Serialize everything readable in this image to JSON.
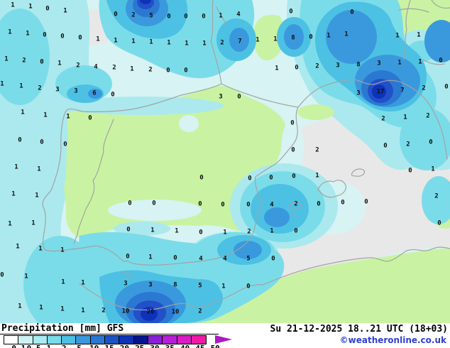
{
  "legend": {
    "title": "Precipitation [mm] GFS",
    "parameter": "Precipitation",
    "units": "[mm]",
    "model": "GFS",
    "arrow_color": "#a81cc0",
    "levels": [
      {
        "label": "0.1",
        "color": "#ffffff"
      },
      {
        "label": "0.5",
        "color": "#cdf2f3"
      },
      {
        "label": "1",
        "color": "#a6ecf1"
      },
      {
        "label": "2",
        "color": "#78dcea"
      },
      {
        "label": "5",
        "color": "#4cc1e4"
      },
      {
        "label": "10",
        "color": "#3a99dd"
      },
      {
        "label": "15",
        "color": "#2b78d2"
      },
      {
        "label": "20",
        "color": "#1c54c6"
      },
      {
        "label": "25",
        "color": "#0d33b6"
      },
      {
        "label": "30",
        "color": "#03158c"
      },
      {
        "label": "35",
        "color": "#8820d6"
      },
      {
        "label": "40",
        "color": "#b81fd8"
      },
      {
        "label": "45",
        "color": "#d91dc2"
      },
      {
        "label": "50",
        "color": "#ef1ba6"
      }
    ]
  },
  "timestamp": {
    "text": "Su 21-12-2025 18..21 UTC (18+03)"
  },
  "credit": {
    "text": "©weatheronline.co.uk",
    "color": "#2f3fd0"
  },
  "map": {
    "region": "Iberian Peninsula / Western Mediterranean",
    "palette": {
      "p05": "#d7f3f4",
      "p1": "#abe9ee",
      "p2": "#7bdce9",
      "p5": "#4cc1e4",
      "p10": "#3a99dd",
      "p15": "#2b78d2",
      "p20": "#2150c8",
      "p25": "#0f33b8",
      "dry": "#e9e8e8",
      "dry2": "#f0f8f8",
      "dry3": "#eee6e6",
      "land": "#c9f3a2",
      "coast": "#a3a3a3"
    },
    "values": [
      [
        18,
        6,
        "1"
      ],
      [
        43,
        8,
        "1"
      ],
      [
        67,
        11,
        "0"
      ],
      [
        92,
        14,
        "1"
      ],
      [
        163,
        19,
        "0"
      ],
      [
        188,
        20,
        "2"
      ],
      [
        213,
        21,
        "5"
      ],
      [
        238,
        22,
        "0"
      ],
      [
        262,
        22,
        "0"
      ],
      [
        287,
        22,
        "0"
      ],
      [
        311,
        21,
        "1"
      ],
      [
        336,
        19,
        "4"
      ],
      [
        410,
        15,
        "0"
      ],
      [
        496,
        16,
        "0"
      ],
      [
        14,
        44,
        "1"
      ],
      [
        39,
        46,
        "1"
      ],
      [
        63,
        48,
        "0"
      ],
      [
        88,
        50,
        "0"
      ],
      [
        113,
        52,
        "0"
      ],
      [
        138,
        54,
        "1"
      ],
      [
        163,
        56,
        "1"
      ],
      [
        188,
        57,
        "1"
      ],
      [
        213,
        58,
        "1"
      ],
      [
        238,
        59,
        "1"
      ],
      [
        263,
        60,
        "1"
      ],
      [
        288,
        60,
        "1"
      ],
      [
        313,
        59,
        "2"
      ],
      [
        338,
        57,
        "7"
      ],
      [
        363,
        55,
        "1"
      ],
      [
        388,
        54,
        "1"
      ],
      [
        413,
        52,
        "8"
      ],
      [
        438,
        51,
        "0"
      ],
      [
        463,
        49,
        "1"
      ],
      [
        488,
        47,
        "1"
      ],
      [
        560,
        49,
        "1"
      ],
      [
        590,
        48,
        "1"
      ],
      [
        9,
        82,
        "1"
      ],
      [
        34,
        84,
        "2"
      ],
      [
        59,
        86,
        "0"
      ],
      [
        84,
        88,
        "1"
      ],
      [
        110,
        91,
        "2"
      ],
      [
        135,
        93,
        "4"
      ],
      [
        161,
        94,
        "2"
      ],
      [
        186,
        96,
        "1"
      ],
      [
        212,
        97,
        "2"
      ],
      [
        237,
        98,
        "0"
      ],
      [
        262,
        98,
        "0"
      ],
      [
        390,
        95,
        "1"
      ],
      [
        418,
        94,
        "0"
      ],
      [
        447,
        92,
        "2"
      ],
      [
        476,
        91,
        "3"
      ],
      [
        505,
        90,
        "8"
      ],
      [
        534,
        88,
        "3"
      ],
      [
        563,
        87,
        "1"
      ],
      [
        592,
        86,
        "1"
      ],
      [
        621,
        84,
        "0"
      ],
      [
        3,
        117,
        "1"
      ],
      [
        30,
        120,
        "1"
      ],
      [
        56,
        123,
        "2"
      ],
      [
        81,
        125,
        "3"
      ],
      [
        107,
        127,
        "3"
      ],
      [
        133,
        130,
        "6"
      ],
      [
        159,
        132,
        "0"
      ],
      [
        311,
        135,
        "3"
      ],
      [
        337,
        135,
        "0"
      ],
      [
        505,
        130,
        "3"
      ],
      [
        536,
        128,
        "17"
      ],
      [
        567,
        126,
        "7"
      ],
      [
        597,
        123,
        "2"
      ],
      [
        629,
        121,
        "0"
      ],
      [
        32,
        157,
        "1"
      ],
      [
        64,
        161,
        "1"
      ],
      [
        96,
        163,
        "1"
      ],
      [
        127,
        165,
        "0"
      ],
      [
        412,
        172,
        "0"
      ],
      [
        540,
        166,
        "2"
      ],
      [
        571,
        164,
        "1"
      ],
      [
        603,
        162,
        "2"
      ],
      [
        28,
        196,
        "0"
      ],
      [
        59,
        199,
        "0"
      ],
      [
        92,
        202,
        "0"
      ],
      [
        413,
        210,
        "0"
      ],
      [
        447,
        210,
        "2"
      ],
      [
        543,
        204,
        "0"
      ],
      [
        575,
        202,
        "2"
      ],
      [
        607,
        199,
        "0"
      ],
      [
        23,
        234,
        "1"
      ],
      [
        55,
        237,
        "1"
      ],
      [
        284,
        249,
        "0"
      ],
      [
        352,
        250,
        "0"
      ],
      [
        382,
        249,
        "0"
      ],
      [
        414,
        247,
        "0"
      ],
      [
        447,
        246,
        "1"
      ],
      [
        578,
        239,
        "0"
      ],
      [
        610,
        237,
        "1"
      ],
      [
        19,
        272,
        "1"
      ],
      [
        52,
        274,
        "1"
      ],
      [
        183,
        285,
        "0"
      ],
      [
        217,
        285,
        "0"
      ],
      [
        282,
        286,
        "0"
      ],
      [
        314,
        287,
        "0"
      ],
      [
        350,
        287,
        "0"
      ],
      [
        383,
        287,
        "4"
      ],
      [
        417,
        286,
        "2"
      ],
      [
        449,
        286,
        "0"
      ],
      [
        483,
        284,
        "0"
      ],
      [
        516,
        283,
        "0"
      ],
      [
        615,
        275,
        "2"
      ],
      [
        14,
        314,
        "1"
      ],
      [
        47,
        313,
        "1"
      ],
      [
        181,
        322,
        "0"
      ],
      [
        215,
        323,
        "1"
      ],
      [
        249,
        324,
        "1"
      ],
      [
        283,
        326,
        "0"
      ],
      [
        317,
        326,
        "1"
      ],
      [
        351,
        325,
        "2"
      ],
      [
        383,
        324,
        "1"
      ],
      [
        417,
        324,
        "0"
      ],
      [
        619,
        313,
        "0"
      ],
      [
        25,
        346,
        "1"
      ],
      [
        57,
        349,
        "1"
      ],
      [
        88,
        351,
        "1"
      ],
      [
        180,
        360,
        "0"
      ],
      [
        212,
        361,
        "1"
      ],
      [
        247,
        362,
        "0"
      ],
      [
        283,
        363,
        "4"
      ],
      [
        317,
        363,
        "4"
      ],
      [
        350,
        363,
        "5"
      ],
      [
        385,
        363,
        "0"
      ],
      [
        3,
        386,
        "0"
      ],
      [
        37,
        388,
        "1"
      ],
      [
        89,
        396,
        "1"
      ],
      [
        117,
        397,
        "1"
      ],
      [
        177,
        398,
        "3"
      ],
      [
        212,
        400,
        "3"
      ],
      [
        247,
        400,
        "8"
      ],
      [
        282,
        401,
        "5"
      ],
      [
        315,
        402,
        "1"
      ],
      [
        350,
        402,
        "0"
      ],
      [
        28,
        430,
        "1"
      ],
      [
        58,
        432,
        "1"
      ],
      [
        88,
        434,
        "1"
      ],
      [
        117,
        436,
        "1"
      ],
      [
        146,
        436,
        "2"
      ],
      [
        177,
        437,
        "10"
      ],
      [
        212,
        438,
        "20"
      ],
      [
        247,
        438,
        "10"
      ],
      [
        282,
        437,
        "2"
      ]
    ]
  }
}
